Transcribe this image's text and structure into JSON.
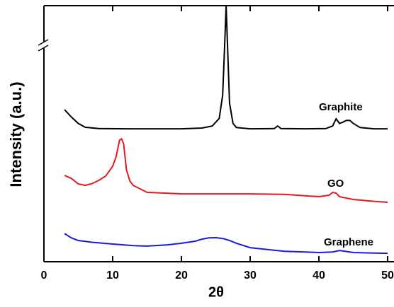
{
  "chart_data": {
    "type": "line",
    "xlabel": "2θ",
    "ylabel": "Intensity (a.u.)",
    "xlim": [
      0,
      50
    ],
    "xticks": [
      0,
      10,
      20,
      30,
      40,
      50
    ],
    "ylim": [
      0,
      100
    ],
    "series": [
      {
        "name": "Graphite",
        "color": "#000000",
        "x": [
          3,
          4,
          5,
          6,
          8,
          12,
          16,
          20,
          23,
          24.5,
          25.5,
          26,
          26.3,
          26.5,
          26.7,
          27,
          27.5,
          28,
          30,
          33.5,
          34,
          34.5,
          38,
          41,
          42,
          42.5,
          43,
          43.5,
          44,
          44.5,
          45,
          46,
          48,
          50
        ],
        "values": [
          59.4,
          56.5,
          54,
          52.5,
          52,
          51.9,
          51.9,
          51.9,
          52.2,
          53,
          56,
          65,
          85,
          100,
          85,
          62,
          54,
          52.4,
          51.9,
          52,
          53,
          52,
          51.9,
          52,
          53,
          55.8,
          54,
          54.5,
          55.2,
          55.2,
          54,
          52.4,
          51.9,
          51.9
        ]
      },
      {
        "name": "GO",
        "color": "#e8191e",
        "x": [
          3,
          4,
          5,
          6,
          7,
          8,
          9,
          10,
          10.5,
          11,
          11.3,
          11.6,
          12,
          12.5,
          13,
          15,
          20,
          25,
          30,
          35,
          40,
          41.5,
          42,
          42.5,
          43,
          45,
          48,
          50
        ],
        "values": [
          33.7,
          32.5,
          30.4,
          29.8,
          30.5,
          31.8,
          33.5,
          37.3,
          41,
          47.5,
          48,
          46,
          35.9,
          31.5,
          29.8,
          27.1,
          26.5,
          26.5,
          26.5,
          26.3,
          25.4,
          26,
          27.1,
          26.8,
          25.4,
          24.3,
          23.6,
          23.2
        ]
      },
      {
        "name": "Graphene",
        "color": "#1a1adb",
        "x": [
          3,
          4,
          5,
          7,
          10,
          13,
          15,
          18,
          20,
          22,
          23,
          24,
          25,
          26,
          27,
          28,
          30,
          33,
          35,
          38,
          40,
          42,
          43,
          44,
          45,
          48,
          50
        ],
        "values": [
          11,
          9.3,
          8.3,
          7.6,
          6.9,
          6.3,
          6.1,
          6.6,
          7.2,
          8,
          8.8,
          9.3,
          9.4,
          9.1,
          8.3,
          7.2,
          5.5,
          4.6,
          4.1,
          3.8,
          3.6,
          3.8,
          4.4,
          4,
          3.6,
          3.4,
          3.3
        ]
      }
    ]
  }
}
